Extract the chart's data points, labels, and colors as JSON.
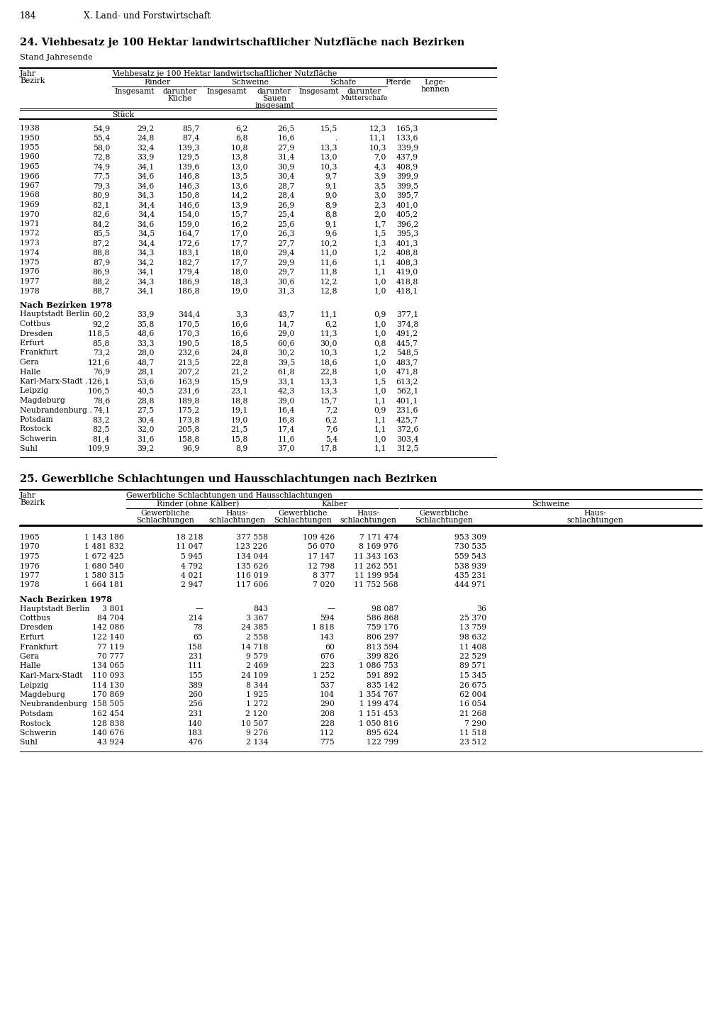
{
  "page_header": "184",
  "page_header2": "X. Land- und Forstwirtschaft",
  "title1": "24. Viehbesatz je 100 Hektar landwirtschaftlicher Nutzfläche nach Bezirken",
  "subtitle1": "Stand Jahresende",
  "col_span_header": "Viehbesatz je 100 Hektar landwirtschaftlicher Nutzfläche",
  "unit_row": "Stück",
  "table1_years": [
    [
      "1938           ",
      "54,9",
      "29,2",
      "85,7",
      "6,2",
      "26,5",
      "15,5",
      "12,3",
      "165,3"
    ],
    [
      "1950           ",
      "55,4",
      "24,8",
      "87,4",
      "6,8",
      "16,6",
      ".",
      "11,1",
      "133,6"
    ],
    [
      "1955           ",
      "58,0",
      "32,4",
      "139,3",
      "10,8",
      "27,9",
      "13,3",
      "10,3",
      "339,9"
    ],
    [
      "1960           ",
      "72,8",
      "33,9",
      "129,5",
      "13,8",
      "31,4",
      "13,0",
      "7,0",
      "437,9"
    ],
    [
      "1965           ",
      "74,9",
      "34,1",
      "139,6",
      "13,0",
      "30,9",
      "10,3",
      "4,3",
      "408,9"
    ],
    [
      "1966           ",
      "77,5",
      "34,6",
      "146,8",
      "13,5",
      "30,4",
      "9,7",
      "3,9",
      "399,9"
    ],
    [
      "1967           ",
      "79,3",
      "34,6",
      "146,3",
      "13,6",
      "28,7",
      "9,1",
      "3,5",
      "399,5"
    ],
    [
      "1968           ",
      "80,9",
      "34,3",
      "150,8",
      "14,2",
      "28,4",
      "9,0",
      "3,0",
      "395,7"
    ],
    [
      "1969           ",
      "82,1",
      "34,4",
      "146,6",
      "13,9",
      "26,9",
      "8,9",
      "2,3",
      "401,0"
    ],
    [
      "1970           ",
      "82,6",
      "34,4",
      "154,0",
      "15,7",
      "25,4",
      "8,8",
      "2,0",
      "405,2"
    ],
    [
      "1971           ",
      "84,2",
      "34,6",
      "159,0",
      "16,2",
      "25,6",
      "9,1",
      "1,7",
      "396,2"
    ],
    [
      "1972           ",
      "85,5",
      "34,5",
      "164,7",
      "17,0",
      "26,3",
      "9,6",
      "1,5",
      "395,3"
    ],
    [
      "1973           ",
      "87,2",
      "34,4",
      "172,6",
      "17,7",
      "27,7",
      "10,2",
      "1,3",
      "401,3"
    ],
    [
      "1974           ",
      "88,8",
      "34,3",
      "183,1",
      "18,0",
      "29,4",
      "11,0",
      "1,2",
      "408,8"
    ],
    [
      "1975           ",
      "87,9",
      "34,2",
      "182,7",
      "17,7",
      "29,9",
      "11,6",
      "1,1",
      "408,3"
    ],
    [
      "1976           ",
      "86,9",
      "34,1",
      "179,4",
      "18,0",
      "29,7",
      "11,8",
      "1,1",
      "419,0"
    ],
    [
      "1977           ",
      "88,2",
      "34,3",
      "186,9",
      "18,3",
      "30,6",
      "12,2",
      "1,0",
      "418,8"
    ],
    [
      "1978           ",
      "88,7",
      "34,1",
      "186,8",
      "19,0",
      "31,3",
      "12,8",
      "1,0",
      "418,1"
    ]
  ],
  "bezirk_header": "Nach Bezirken 1978",
  "table1_bezirke": [
    [
      "Hauptstadt Berlin",
      "60,2",
      "33,9",
      "344,4",
      "3,3",
      "43,7",
      "11,1",
      "0,9",
      "377,1"
    ],
    [
      "Cottbus         ",
      "92,2",
      "35,8",
      "170,5",
      "16,6",
      "14,7",
      "6,2",
      "1,0",
      "374,8"
    ],
    [
      "Dresden        ",
      "118,5",
      "48,6",
      "170,3",
      "16,6",
      "29,0",
      "11,3",
      "1,0",
      "491,2"
    ],
    [
      "Erfurt          ",
      "85,8",
      "33,3",
      "190,5",
      "18,5",
      "60,6",
      "30,0",
      "0,8",
      "445,7"
    ],
    [
      "Frankfurt       ",
      "73,2",
      "28,0",
      "232,6",
      "24,8",
      "30,2",
      "10,3",
      "1,2",
      "548,5"
    ],
    [
      "Gera           ",
      "121,6",
      "48,7",
      "213,5",
      "22,8",
      "39,5",
      "18,6",
      "1,0",
      "483,7"
    ],
    [
      "Halle           ",
      "76,9",
      "28,1",
      "207,2",
      "21,2",
      "61,8",
      "22,8",
      "1,0",
      "471,8"
    ],
    [
      "Karl-Marx-Stadt .",
      "126,1",
      "53,6",
      "163,9",
      "15,9",
      "33,1",
      "13,3",
      "1,5",
      "613,2"
    ],
    [
      "Leipzig          ",
      "106,5",
      "40,5",
      "231,6",
      "23,1",
      "42,3",
      "13,3",
      "1,0",
      "562,1"
    ],
    [
      "Magdeburg       ",
      "78,6",
      "28,8",
      "189,8",
      "18,8",
      "39,0",
      "15,7",
      "1,1",
      "401,1"
    ],
    [
      "Neubrandenburg .",
      "74,1",
      "27,5",
      "175,2",
      "19,1",
      "16,4",
      "7,2",
      "0,9",
      "231,6"
    ],
    [
      "Potsdam         ",
      "83,2",
      "30,4",
      "173,8",
      "19,0",
      "16,8",
      "6,2",
      "1,1",
      "425,7"
    ],
    [
      "Rostock         ",
      "82,5",
      "32,0",
      "205,8",
      "21,5",
      "17,4",
      "7,6",
      "1,1",
      "372,6"
    ],
    [
      "Schwerin        ",
      "81,4",
      "31,6",
      "158,8",
      "15,8",
      "11,6",
      "5,4",
      "1,0",
      "303,4"
    ],
    [
      "Suhl           ",
      "109,9",
      "39,2",
      "96,9",
      "8,9",
      "37,0",
      "17,8",
      "1,1",
      "312,5"
    ]
  ],
  "title2": "25. Gewerbliche Schlachtungen und Hausschlachtungen nach Bezirken",
  "col_span_header2": "Gewerbliche Schlachtungen und Hausschlachtungen",
  "table2_years": [
    [
      "1965               ",
      "1 143 186",
      "18 218",
      "377 558",
      "109 426",
      "7 171 474",
      "953 309"
    ],
    [
      "1970               ",
      "1 481 832",
      "11 047",
      "123 226",
      "56 070",
      "8 169 976",
      "730 535"
    ],
    [
      "1975               ",
      "1 672 425",
      "5 945",
      "134 044",
      "17 147",
      "11 343 163",
      "559 543"
    ],
    [
      "1976               ",
      "1 680 540",
      "4 792",
      "135 626",
      "12 798",
      "11 262 551",
      "538 939"
    ],
    [
      "1977               ",
      "1 580 315",
      "4 021",
      "116 019",
      "8 377",
      "11 199 954",
      "435 231"
    ],
    [
      "1978               ",
      "1 664 181",
      "2 947",
      "117 606",
      "7 020",
      "11 752 568",
      "444 971"
    ]
  ],
  "bezirk_header2": "Nach Bezirken 1978",
  "table2_bezirke": [
    [
      "Hauptstadt Berlin      ",
      "3 801",
      "—",
      "843",
      "—",
      "98 087",
      "36"
    ],
    [
      "Cottbus             ",
      "84 704",
      "214",
      "3 367",
      "594",
      "586 868",
      "25 370"
    ],
    [
      "Dresden            ",
      "142 086",
      "78",
      "24 385",
      "1 818",
      "759 176",
      "13 759"
    ],
    [
      "Erfurt             ",
      "122 140",
      "65",
      "2 558",
      "143",
      "806 297",
      "98 632"
    ],
    [
      "Frankfurt           ",
      "77 119",
      "158",
      "14 718",
      "60",
      "813 594",
      "11 408"
    ],
    [
      "Gera              ",
      "70 777",
      "231",
      "9 579",
      "676",
      "399 826",
      "22 529"
    ],
    [
      "Halle              ",
      "134 065",
      "111",
      "2 469",
      "223",
      "1 086 753",
      "89 571"
    ],
    [
      "Karl-Marx-Stadt      ",
      "110 093",
      "155",
      "24 109",
      "1 252",
      "591 892",
      "15 345"
    ],
    [
      "Leipzig             ",
      "114 130",
      "389",
      "8 344",
      "537",
      "835 142",
      "26 675"
    ],
    [
      "Magdeburg          ",
      "170 869",
      "260",
      "1 925",
      "104",
      "1 354 767",
      "62 004"
    ],
    [
      "Neubrandenburg     ",
      "158 505",
      "256",
      "1 272",
      "290",
      "1 199 474",
      "16 054"
    ],
    [
      "Potsdam            ",
      "162 454",
      "231",
      "2 120",
      "208",
      "1 151 453",
      "21 268"
    ],
    [
      "Rostock            ",
      "128 838",
      "140",
      "10 507",
      "228",
      "1 050 816",
      "7 290"
    ],
    [
      "Schwerin           ",
      "140 676",
      "183",
      "9 276",
      "112",
      "895 624",
      "11 518"
    ],
    [
      "Suhl              ",
      "43 924",
      "476",
      "2 134",
      "775",
      "122 799",
      "23 512"
    ]
  ]
}
